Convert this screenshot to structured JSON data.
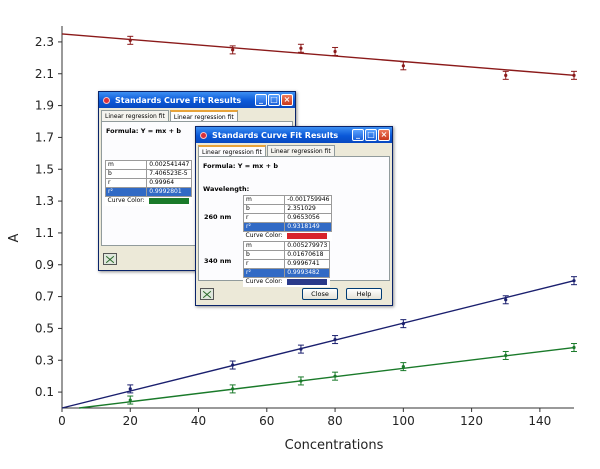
{
  "chart_data": {
    "type": "scatter",
    "title": "",
    "xlabel": "Concentrations",
    "ylabel": "A",
    "xlim": [
      0,
      150
    ],
    "ylim": [
      0,
      2.4
    ],
    "x_ticks": [
      0,
      20,
      40,
      60,
      80,
      100,
      120,
      140
    ],
    "y_ticks": [
      0.1,
      0.3,
      0.5,
      0.7,
      0.9,
      1.1,
      1.3,
      1.5,
      1.7,
      1.9,
      2.1,
      2.3
    ],
    "grid": false,
    "legend": "none",
    "series": [
      {
        "color": "#8b1a1a",
        "x": [
          20,
          50,
          70,
          80,
          100,
          130,
          150
        ],
        "y": [
          2.31,
          2.25,
          2.26,
          2.24,
          2.15,
          2.09,
          2.09
        ],
        "fit": {
          "x0": 0,
          "y0": 2.35,
          "x1": 150,
          "y1": 2.09
        }
      },
      {
        "color": "#1a1f6e",
        "x": [
          20,
          50,
          70,
          80,
          100,
          130,
          150
        ],
        "y": [
          0.12,
          0.27,
          0.37,
          0.43,
          0.53,
          0.68,
          0.8
        ],
        "fit": {
          "x0": 0,
          "y0": 0.0,
          "x1": 150,
          "y1": 0.8
        }
      },
      {
        "color": "#1a7a2a",
        "x": [
          20,
          50,
          70,
          80,
          100,
          130,
          150
        ],
        "y": [
          0.05,
          0.12,
          0.17,
          0.2,
          0.26,
          0.33,
          0.38
        ],
        "fit": {
          "x0": 5,
          "y0": 0.0,
          "x1": 150,
          "y1": 0.38
        }
      }
    ]
  },
  "window_back": {
    "title": "Standards Curve Fit Results",
    "tabs": [
      "Linear regression fit",
      "Linear regression fit"
    ],
    "formula": "Formula: Y = mx + b",
    "rows": [
      {
        "k": "m",
        "v": "0.002541447"
      },
      {
        "k": "b",
        "v": "7.406523E-5"
      },
      {
        "k": "r",
        "v": "0.99964"
      },
      {
        "k": "r²",
        "v": "0.9992801"
      }
    ],
    "curve_color_label": "Curve Color:",
    "curve_color": "#1a7a2a"
  },
  "window_front": {
    "title": "Standards Curve Fit Results",
    "tabs": [
      "Linear regression fit",
      "Linear regression fit"
    ],
    "formula": "Formula: Y = mx + b",
    "wavelength_label": "Wavelength:",
    "groups": [
      {
        "nm": "260 nm",
        "rows": [
          {
            "k": "m",
            "v": "-0.001759946"
          },
          {
            "k": "b",
            "v": "2.351029"
          },
          {
            "k": "r",
            "v": "0.9653056"
          },
          {
            "k": "r²",
            "v": "0.9318149"
          }
        ],
        "curve_color": "#d8232a"
      },
      {
        "nm": "340 nm",
        "rows": [
          {
            "k": "m",
            "v": "0.005279973"
          },
          {
            "k": "b",
            "v": "0.01670618"
          },
          {
            "k": "r",
            "v": "0.9996741"
          },
          {
            "k": "r²",
            "v": "0.9993482"
          }
        ],
        "curve_color": "#2a3a8a"
      }
    ],
    "curve_color_label": "Curve Color:",
    "close_label": "Close",
    "help_label": "Help"
  },
  "icons": {
    "app": "app-icon",
    "minimize": "minimize-icon",
    "maximize": "maximize-icon",
    "close": "close-icon",
    "chart": "chart-icon"
  },
  "glyphs": {
    "min": "_",
    "max": "□",
    "close": "×"
  }
}
